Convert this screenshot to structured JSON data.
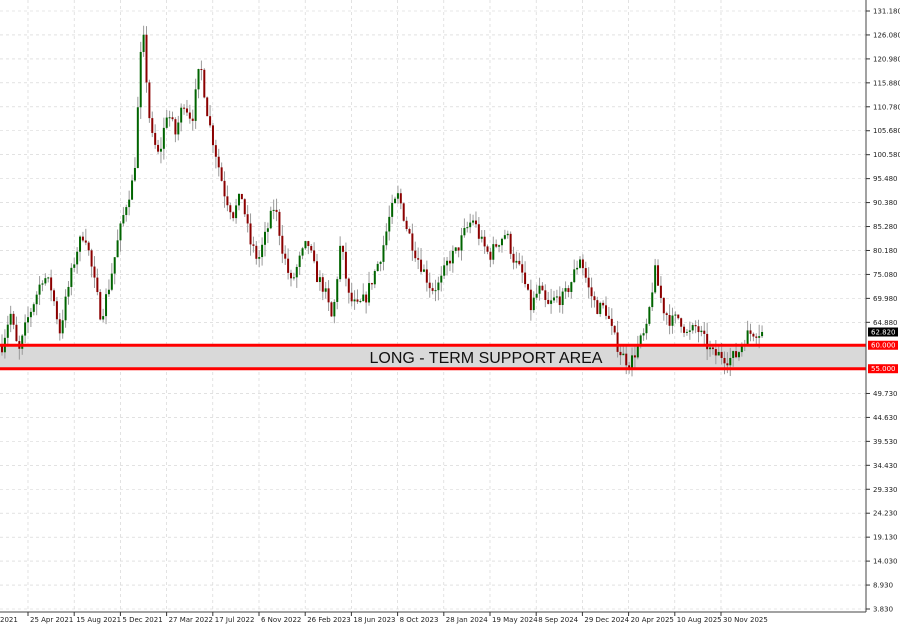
{
  "chart_data": {
    "type": "candlestick",
    "title": "",
    "xlabel": "",
    "ylabel": "",
    "ylim": [
      3.83,
      131.18
    ],
    "grid": true,
    "y_ticks": [
      "131.180",
      "126.080",
      "120.980",
      "115.880",
      "110.780",
      "105.680",
      "100.580",
      "95.480",
      "90.380",
      "85.280",
      "80.180",
      "75.080",
      "69.980",
      "64.880",
      "49.730",
      "44.630",
      "39.530",
      "34.430",
      "29.330",
      "24.230",
      "19.130",
      "14.030",
      "8.930",
      "3.830"
    ],
    "x_ticks": [
      "2021",
      "25 Apr 2021",
      "15 Aug 2021",
      "5 Dec 2021",
      "27 Mar 2022",
      "17 Jul 2022",
      "6 Nov 2022",
      "26 Feb 2023",
      "18 Jun 2023",
      "8 Oct 2023",
      "28 Jan 2024",
      "19 May 2024",
      "8 Sep 2024",
      "29 Dec 2024",
      "20 Apr 2025",
      "10 Aug 2025",
      "30 Nov 2025"
    ],
    "timeframe": "weekly",
    "approx_close_path": [
      60,
      67,
      58,
      65,
      70,
      75,
      72,
      63,
      72,
      80,
      84.5,
      75,
      66,
      73,
      82,
      90,
      96,
      128,
      105,
      100,
      110,
      105,
      112,
      108,
      120,
      108,
      100,
      92,
      88,
      92,
      82,
      78,
      84,
      90,
      80,
      73,
      78,
      82,
      75,
      72,
      65,
      82,
      70,
      68,
      70,
      75,
      80,
      88,
      92,
      85,
      80,
      76,
      72,
      73,
      78,
      80,
      84,
      87,
      82,
      79,
      82,
      84,
      78,
      75,
      68,
      72,
      68,
      70,
      70,
      74,
      79,
      72,
      68,
      68,
      62,
      58,
      56,
      60,
      63,
      76,
      68,
      65,
      66,
      62,
      64,
      61,
      58,
      58,
      57,
      58,
      62,
      63,
      62.82
    ],
    "current_price": {
      "value": 62.82,
      "label": "62.820"
    },
    "support_zone": {
      "upper": 60,
      "lower": 55,
      "upper_label": "60.000",
      "lower_label": "55.000",
      "text": "LONG - TERM SUPPORT AREA"
    },
    "colors": {
      "bull": "#006400",
      "bear": "#8b0000",
      "wick": "#9a9a9a",
      "support_line": "#ff0000",
      "support_fill": "#d9d9d9",
      "grid": "#d0d0d0",
      "price_tag": "#000000"
    }
  }
}
